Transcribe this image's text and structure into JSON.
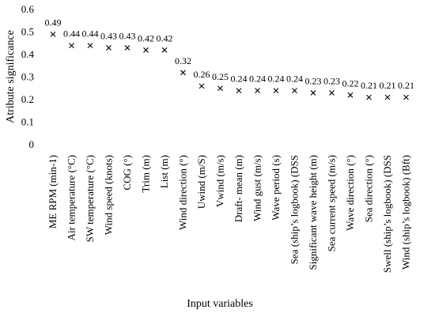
{
  "chart_data": {
    "type": "scatter",
    "xlabel": "Input variables",
    "ylabel": "Atribute significance",
    "ylim": [
      0,
      0.6
    ],
    "yticks": [
      "0",
      "0.1",
      "0.2",
      "0.3",
      "0.4",
      "0.5",
      "0.6"
    ],
    "grid": false,
    "marker": "x",
    "categories": [
      "ME RPM (min-1)",
      "Air temperature (°C)",
      "SW temperature (°C)",
      "Wind speed (knots)",
      "COG (°)",
      "Trim (m)",
      "List (m)",
      "Wind direction (°)",
      "Uwind (m/S)",
      "Vwind (m/s)",
      "Draft- mean (m)",
      "Wind gust (m/s)",
      "Wave period (s)",
      "Sea (ship’s logbook) (DSS",
      "Significant wave height (m)",
      "Sea current speed (m/s)",
      "Wave direction (°)",
      "Sea direction (°)",
      "Swell (ship’s logbook) (DSS",
      "Wind (ship’s logbook) (Bft)"
    ],
    "values": [
      0.49,
      0.44,
      0.44,
      0.43,
      0.43,
      0.42,
      0.42,
      0.32,
      0.26,
      0.25,
      0.24,
      0.24,
      0.24,
      0.24,
      0.23,
      0.23,
      0.22,
      0.21,
      0.21,
      0.21
    ],
    "value_labels": [
      "0.49",
      "0.44",
      "0.44",
      "0.43",
      "0.43",
      "0.42",
      "0.42",
      "0.32",
      "0.26",
      "0.25",
      "0.24",
      "0.24",
      "0.24",
      "0.24",
      "0.23",
      "0.23",
      "0.22",
      "0.21",
      "0.21",
      "0.21"
    ]
  }
}
